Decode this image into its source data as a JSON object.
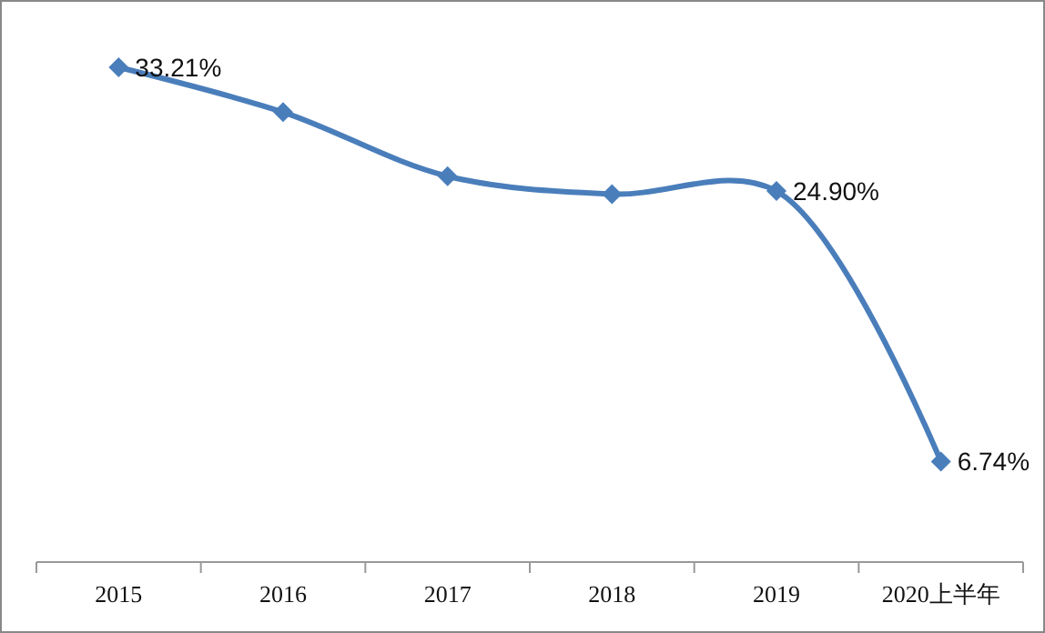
{
  "chart_data": {
    "type": "line",
    "categories": [
      "2015",
      "2016",
      "2017",
      "2018",
      "2019",
      "2020上半年"
    ],
    "series": [
      {
        "color": "#4a7ebb",
        "values": [
          33.21,
          30.2,
          25.9,
          24.7,
          24.9,
          6.74
        ],
        "value_labels": [
          "33.21%",
          null,
          null,
          null,
          "24.90%",
          "6.74%"
        ]
      }
    ],
    "tick_labels": "x",
    "marker": "diamond"
  }
}
